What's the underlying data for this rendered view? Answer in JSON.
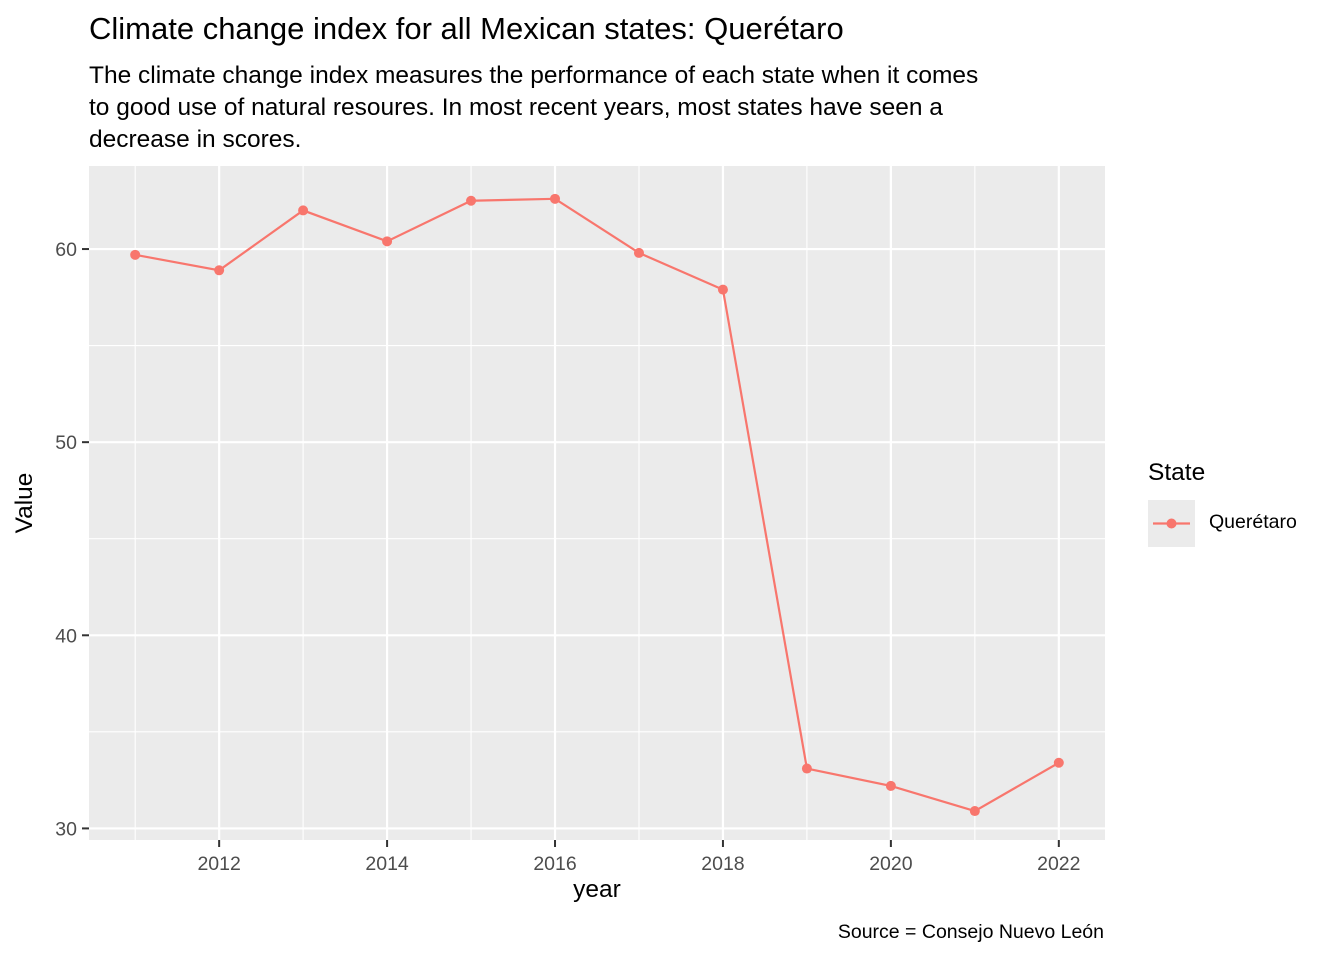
{
  "chart_data": {
    "type": "line",
    "title": "Climate change index for all Mexican states: Querétaro",
    "subtitle": "The climate change index measures the performance of each state when it comes\nto good use of natural resoures. In most recent years, most states have seen a\ndecrease in scores.",
    "xlabel": "year",
    "ylabel": "Value",
    "caption": "Source = Consejo Nuevo León",
    "legend_title": "State",
    "legend_placement": "right",
    "x": [
      2011,
      2012,
      2013,
      2014,
      2015,
      2016,
      2017,
      2018,
      2019,
      2020,
      2021,
      2022
    ],
    "series": [
      {
        "name": "Querétaro",
        "color": "#f8766d",
        "values": [
          59.7,
          58.9,
          62.0,
          60.4,
          62.5,
          62.6,
          59.8,
          57.9,
          33.1,
          32.2,
          30.9,
          33.4
        ]
      }
    ],
    "xlim": [
      2010.45,
      2022.55
    ],
    "ylim": [
      29.4,
      64.3
    ],
    "xticks": [
      2012,
      2014,
      2016,
      2018,
      2020,
      2022
    ],
    "yticks": [
      30,
      40,
      50,
      60
    ],
    "grid": true,
    "panel_color": "#ebebeb"
  }
}
